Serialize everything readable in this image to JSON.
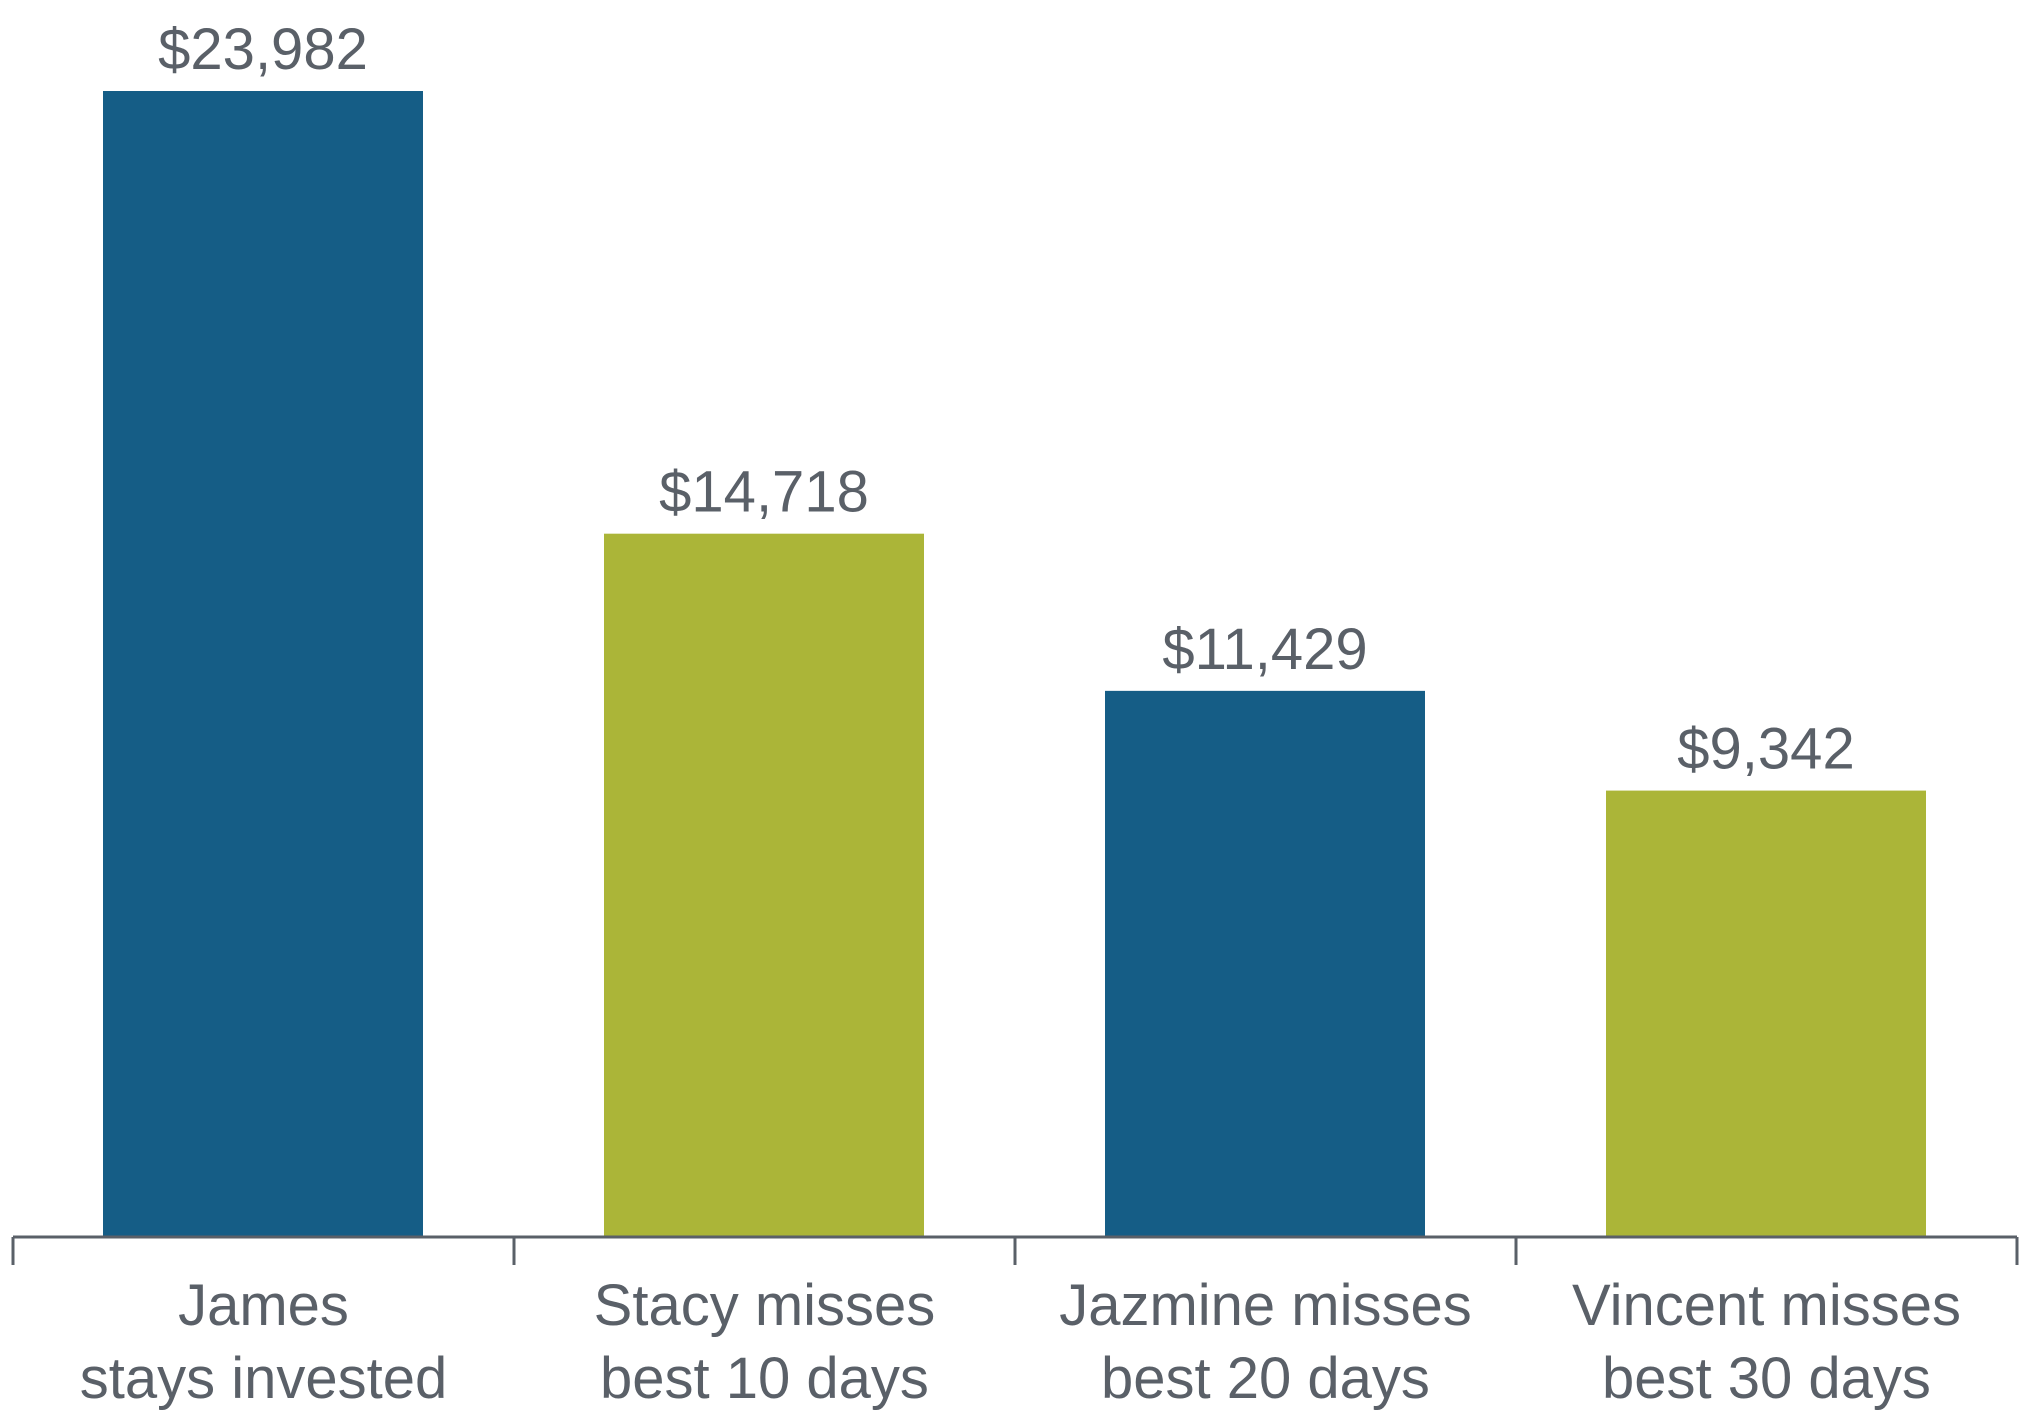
{
  "chart_data": {
    "type": "bar",
    "categories": [
      [
        "James",
        "stays invested"
      ],
      [
        "Stacy misses",
        "best 10 days"
      ],
      [
        "Jazmine misses",
        "best 20 days"
      ],
      [
        "Vincent misses",
        "best 30 days"
      ]
    ],
    "values": [
      23982,
      14718,
      11429,
      9342
    ],
    "value_labels": [
      "$23,982",
      "$14,718",
      "$11,429",
      "$9,342"
    ],
    "bar_colors": [
      "#155d86",
      "#abb538",
      "#155d86",
      "#abb538"
    ],
    "axis_color": "#5a6068",
    "label_color": "#5a6068",
    "ylim": [
      0,
      23982
    ],
    "title": "",
    "xlabel": "",
    "ylabel": "",
    "grid": false,
    "legend": "none"
  }
}
